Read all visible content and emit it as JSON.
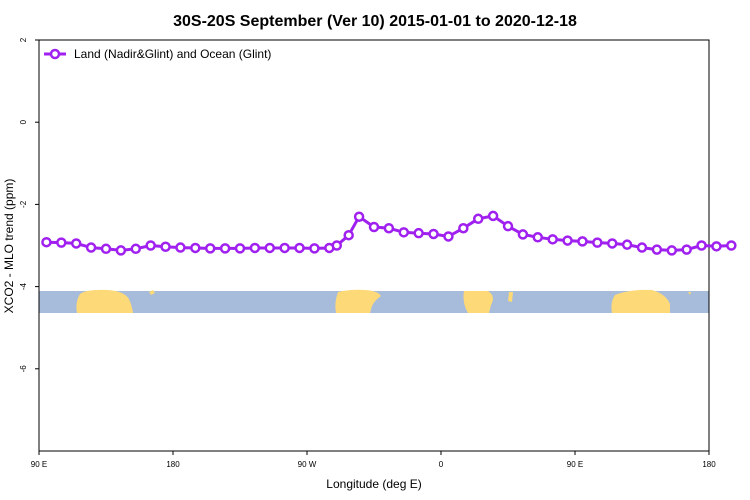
{
  "chart_data": {
    "type": "line",
    "title": "30S-20S September (Ver 10)   2015-01-01 to 2020-12-18",
    "xlabel": "Longitude (deg E)",
    "ylabel": "XCO2 - MLO trend (ppm)",
    "x_tick_labels": [
      "90 E",
      "180",
      "90 W",
      "0",
      "90 E",
      "180"
    ],
    "y_ticks": [
      2,
      0,
      -2,
      -4,
      -6
    ],
    "y_tick_labels": [
      "2",
      "0",
      "-2",
      "-4",
      "-6"
    ],
    "ylim": [
      -8,
      2
    ],
    "legend_position": "top-left",
    "colors": {
      "series": "#a020f0",
      "ocean": "#a7bbdb",
      "land": "#fdd978"
    },
    "series": [
      {
        "name": "Land (Nadir&Glint) and Ocean (Glint)",
        "x": [
          95,
          105,
          115,
          125,
          135,
          145,
          155,
          165,
          175,
          185,
          195,
          205,
          215,
          225,
          235,
          245,
          255,
          265,
          275,
          285,
          290,
          298,
          305,
          315,
          325,
          335,
          345,
          355,
          365,
          375,
          385,
          395,
          405,
          415,
          425,
          435,
          445,
          455,
          465,
          475,
          485,
          495,
          505,
          515,
          525,
          535,
          545,
          555
        ],
        "y": [
          -2.92,
          -2.93,
          -2.95,
          -3.05,
          -3.08,
          -3.12,
          -3.08,
          -3.0,
          -3.03,
          -3.05,
          -3.06,
          -3.07,
          -3.07,
          -3.07,
          -3.06,
          -3.06,
          -3.06,
          -3.06,
          -3.07,
          -3.06,
          -3.0,
          -2.75,
          -2.3,
          -2.55,
          -2.58,
          -2.68,
          -2.7,
          -2.72,
          -2.78,
          -2.58,
          -2.35,
          -2.28,
          -2.53,
          -2.73,
          -2.8,
          -2.85,
          -2.88,
          -2.9,
          -2.93,
          -2.95,
          -2.98,
          -3.05,
          -3.1,
          -3.12,
          -3.1,
          -3.0,
          -3.02,
          -3.0
        ]
      }
    ]
  }
}
